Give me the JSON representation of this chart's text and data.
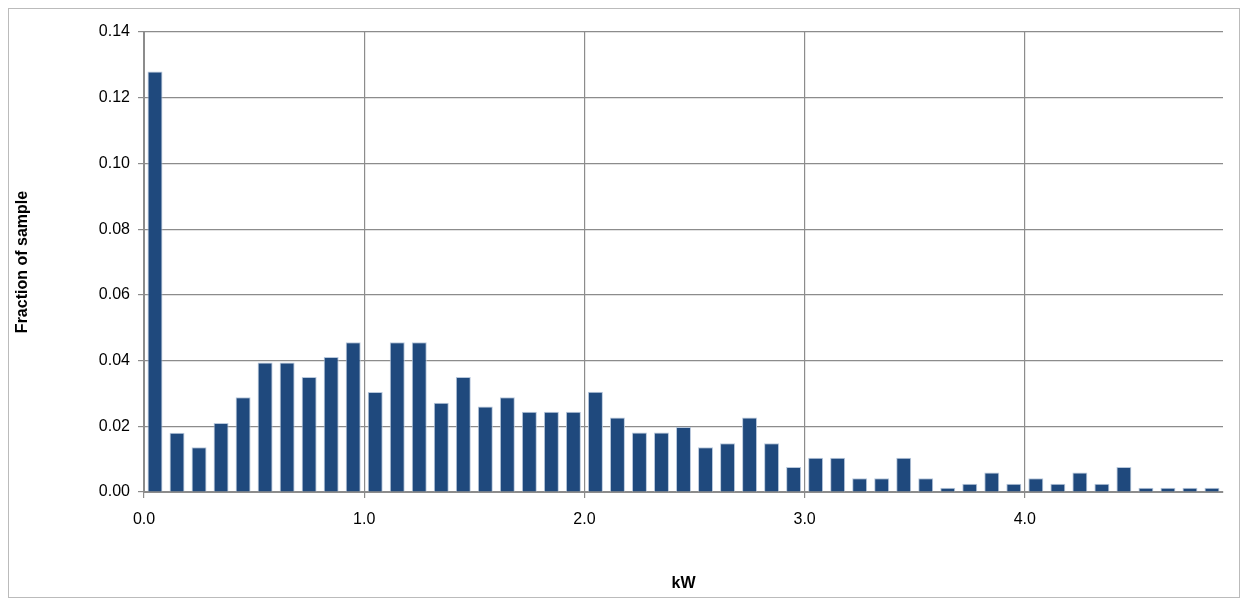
{
  "chart_data": {
    "type": "histogram",
    "xlabel": "kW",
    "ylabel": "Fraction of sample",
    "bins": [
      0,
      0.1,
      0.2,
      0.3,
      0.4,
      0.5,
      0.6,
      0.7,
      0.8,
      0.9,
      1.0,
      1.1,
      1.2,
      1.3,
      1.4,
      1.5,
      1.6,
      1.7,
      1.8,
      1.9,
      2.0,
      2.1,
      2.2,
      2.3,
      2.4,
      2.5,
      2.6,
      2.7,
      2.8,
      2.9,
      3.0,
      3.1,
      3.2,
      3.3,
      3.4,
      3.5,
      3.6,
      3.7,
      3.8,
      3.9,
      4.0,
      4.1,
      4.2,
      4.3,
      4.4,
      4.5,
      4.6,
      4.7,
      4.8,
      4.9
    ],
    "values": [
      0.128,
      0.018,
      0.0136,
      0.021,
      0.0288,
      0.0394,
      0.0394,
      0.035,
      0.0411,
      0.0456,
      0.0304,
      0.0456,
      0.0456,
      0.0272,
      0.035,
      0.026,
      0.0288,
      0.0244,
      0.0244,
      0.0244,
      0.0305,
      0.0227,
      0.0181,
      0.0181,
      0.0198,
      0.0136,
      0.0148,
      0.0227,
      0.0148,
      0.0076,
      0.0104,
      0.0104,
      0.0042,
      0.0042,
      0.0104,
      0.0042,
      0.0013,
      0.0025,
      0.0059,
      0.0025,
      0.0042,
      0.0025,
      0.0059,
      0.0025,
      0.0076,
      0.0013,
      0.0013,
      0.0013,
      0.0013
    ],
    "color": "#1f497d",
    "xlim": [
      0,
      4.9
    ],
    "xticks": [
      {
        "value": 0,
        "label": "0.0"
      },
      {
        "value": 1,
        "label": "1.0"
      },
      {
        "value": 2,
        "label": "2.0"
      },
      {
        "value": 3,
        "label": "3.0"
      },
      {
        "value": 4,
        "label": "4.0"
      }
    ],
    "ylim": [
      0,
      0.14
    ],
    "yticks": [
      {
        "value": 0,
        "label": "0.00"
      },
      {
        "value": 0.02,
        "label": "0.02"
      },
      {
        "value": 0.04,
        "label": "0.04"
      },
      {
        "value": 0.06,
        "label": "0.06"
      },
      {
        "value": 0.08,
        "label": "0.08"
      },
      {
        "value": 0.1,
        "label": "0.10"
      },
      {
        "value": 0.12,
        "label": "0.12"
      },
      {
        "value": 0.14,
        "label": "0.14"
      }
    ],
    "grid": true
  }
}
